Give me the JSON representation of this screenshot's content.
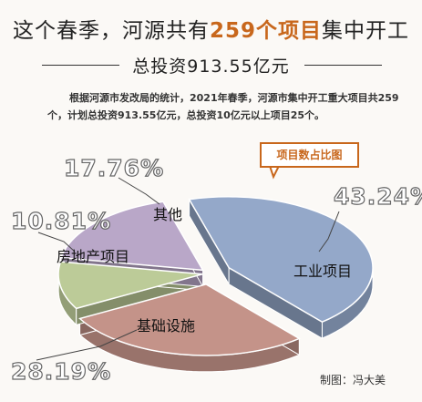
{
  "headline": {
    "part1": "这个春季，河源共有",
    "highlight": "259个项目",
    "part2": "集中开工",
    "subtitle": "总投资913.55亿元"
  },
  "intro": "根据河源市发改局的统计，2021年春季，河源市集中开工重大项目共259个，计划总投资913.55亿元，总投资10亿元以上项目25个。",
  "credit": "制图：冯大美",
  "chart_data": {
    "type": "pie",
    "title": "项目数占比图",
    "slices": [
      {
        "label": "工业项目",
        "value": 43.24,
        "display": "43.24%",
        "color": "#94a8c9"
      },
      {
        "label": "基础设施",
        "value": 28.19,
        "display": "28.19%",
        "color": "#c49389"
      },
      {
        "label": "房地产项目",
        "value": 10.81,
        "display": "10.81%",
        "color": "#bccb98"
      },
      {
        "label": "其他",
        "value": 17.76,
        "display": "17.76%",
        "color": "#b9a7c8"
      }
    ]
  }
}
